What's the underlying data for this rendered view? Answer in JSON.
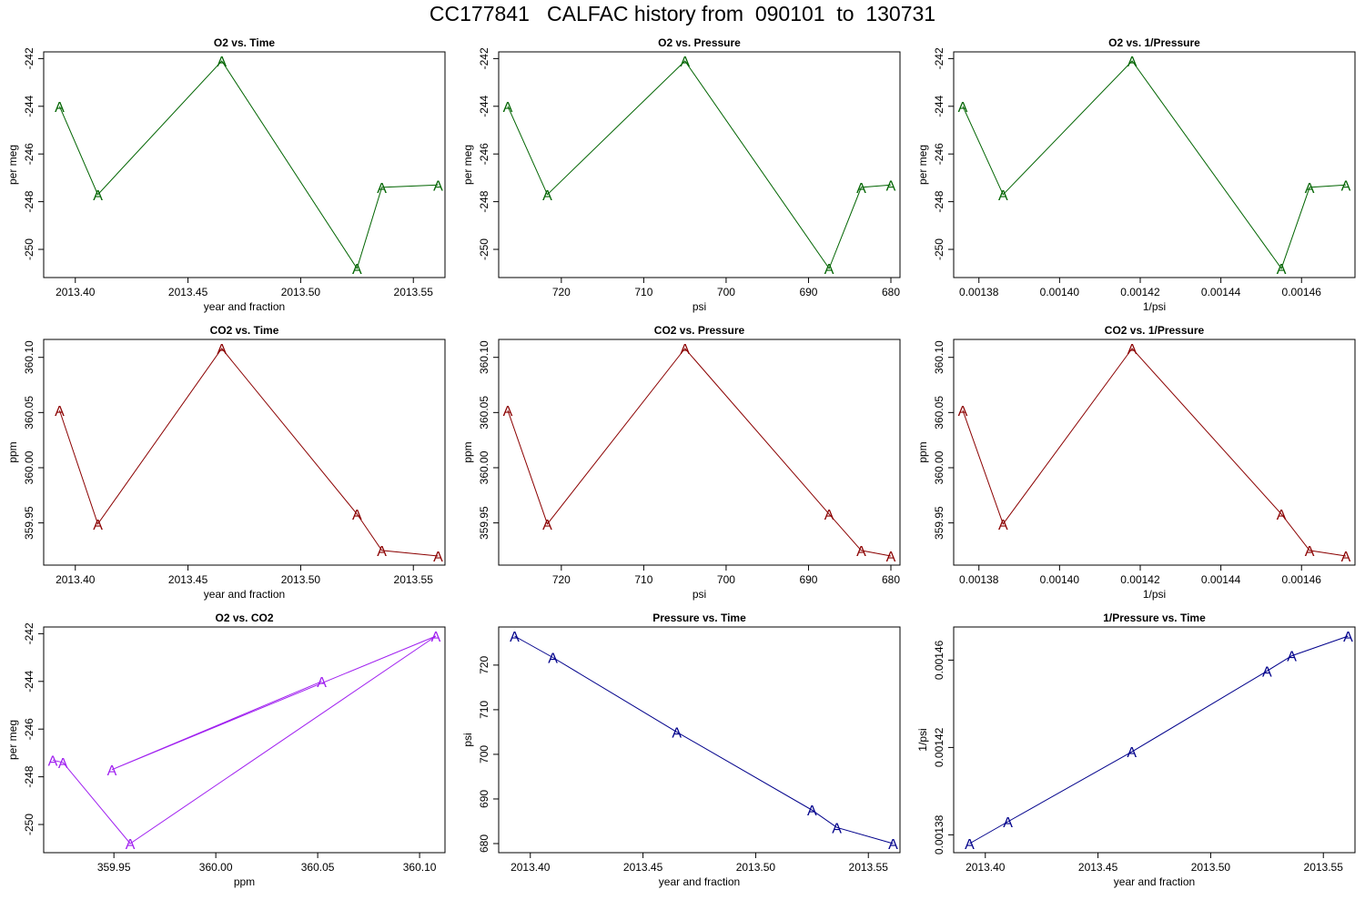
{
  "title": "CC177841   CALFAC history from  090101  to  130731",
  "chart_data": [
    {
      "type": "line",
      "title": "O2 vs. Time",
      "xlabel": "year and fraction",
      "ylabel": "per meg",
      "color": "#006400",
      "marker": "A",
      "x": [
        2013.393,
        2013.41,
        2013.465,
        2013.525,
        2013.536,
        2013.561
      ],
      "y": [
        -244.0,
        -247.7,
        -242.1,
        -250.8,
        -247.4,
        -247.3
      ],
      "xlim": [
        2013.39,
        2013.56
      ],
      "ylim": [
        -250.8,
        -242.1
      ],
      "xticks": [
        2013.4,
        2013.45,
        2013.5,
        2013.55
      ],
      "xtick_labels": [
        "2013.40",
        "2013.45",
        "2013.50",
        "2013.55"
      ],
      "yticks": [
        -250,
        -248,
        -246,
        -244,
        -242
      ],
      "ytick_labels": [
        "-250",
        "-248",
        "-246",
        "-244",
        "-242"
      ],
      "x_reversed": false
    },
    {
      "type": "line",
      "title": "O2 vs. Pressure",
      "xlabel": "psi",
      "ylabel": "per meg",
      "color": "#006400",
      "marker": "A",
      "x": [
        726.5,
        721.7,
        705.0,
        687.5,
        683.6,
        680.0
      ],
      "y": [
        -244.0,
        -247.7,
        -242.1,
        -250.8,
        -247.4,
        -247.3
      ],
      "xlim": [
        726.5,
        680.0
      ],
      "ylim": [
        -250.8,
        -242.1
      ],
      "xticks": [
        720,
        710,
        700,
        690,
        680
      ],
      "xtick_labels": [
        "720",
        "710",
        "700",
        "690",
        "680"
      ],
      "yticks": [
        -250,
        -248,
        -246,
        -244,
        -242
      ],
      "ytick_labels": [
        "-250",
        "-248",
        "-246",
        "-244",
        "-242"
      ],
      "x_reversed": true
    },
    {
      "type": "line",
      "title": "O2 vs. 1/Pressure",
      "xlabel": "1/psi",
      "ylabel": "per meg",
      "color": "#006400",
      "marker": "A",
      "x": [
        0.001376,
        0.001386,
        0.001418,
        0.001455,
        0.001462,
        0.001471
      ],
      "y": [
        -244.0,
        -247.7,
        -242.1,
        -250.8,
        -247.4,
        -247.3
      ],
      "xlim": [
        0.001376,
        0.001471
      ],
      "ylim": [
        -250.8,
        -242.1
      ],
      "xticks": [
        0.00138,
        0.0014,
        0.00142,
        0.00144,
        0.00146
      ],
      "xtick_labels": [
        "0.00138",
        "0.00140",
        "0.00142",
        "0.00144",
        "0.00146"
      ],
      "yticks": [
        -250,
        -248,
        -246,
        -244,
        -242
      ],
      "ytick_labels": [
        "-250",
        "-248",
        "-246",
        "-244",
        "-242"
      ],
      "x_reversed": false
    },
    {
      "type": "line",
      "title": "CO2 vs. Time",
      "xlabel": "year and fraction",
      "ylabel": "ppm",
      "color": "#8b0000",
      "marker": "A",
      "x": [
        2013.393,
        2013.41,
        2013.465,
        2013.525,
        2013.536,
        2013.561
      ],
      "y": [
        360.052,
        359.949,
        360.108,
        359.958,
        359.925,
        359.92
      ],
      "xlim": [
        2013.39,
        2013.56
      ],
      "ylim": [
        359.92,
        360.108
      ],
      "xticks": [
        2013.4,
        2013.45,
        2013.5,
        2013.55
      ],
      "xtick_labels": [
        "2013.40",
        "2013.45",
        "2013.50",
        "2013.55"
      ],
      "yticks": [
        359.95,
        360.0,
        360.05,
        360.1
      ],
      "ytick_labels": [
        "359.95",
        "360.00",
        "360.05",
        "360.10"
      ],
      "x_reversed": false
    },
    {
      "type": "line",
      "title": "CO2 vs. Pressure",
      "xlabel": "psi",
      "ylabel": "ppm",
      "color": "#8b0000",
      "marker": "A",
      "x": [
        726.5,
        721.7,
        705.0,
        687.5,
        683.6,
        680.0
      ],
      "y": [
        360.052,
        359.949,
        360.108,
        359.958,
        359.925,
        359.92
      ],
      "xlim": [
        726.5,
        680.0
      ],
      "ylim": [
        359.92,
        360.108
      ],
      "xticks": [
        720,
        710,
        700,
        690,
        680
      ],
      "xtick_labels": [
        "720",
        "710",
        "700",
        "690",
        "680"
      ],
      "yticks": [
        359.95,
        360.0,
        360.05,
        360.1
      ],
      "ytick_labels": [
        "359.95",
        "360.00",
        "360.05",
        "360.10"
      ],
      "x_reversed": true
    },
    {
      "type": "line",
      "title": "CO2 vs. 1/Pressure",
      "xlabel": "1/psi",
      "ylabel": "ppm",
      "color": "#8b0000",
      "marker": "A",
      "x": [
        0.001376,
        0.001386,
        0.001418,
        0.001455,
        0.001462,
        0.001471
      ],
      "y": [
        360.052,
        359.949,
        360.108,
        359.958,
        359.925,
        359.92
      ],
      "xlim": [
        0.001376,
        0.001471
      ],
      "ylim": [
        359.92,
        360.108
      ],
      "xticks": [
        0.00138,
        0.0014,
        0.00142,
        0.00144,
        0.00146
      ],
      "xtick_labels": [
        "0.00138",
        "0.00140",
        "0.00142",
        "0.00144",
        "0.00146"
      ],
      "yticks": [
        359.95,
        360.0,
        360.05,
        360.1
      ],
      "ytick_labels": [
        "359.95",
        "360.00",
        "360.05",
        "360.10"
      ],
      "x_reversed": false
    },
    {
      "type": "line",
      "title": "O2 vs. CO2",
      "xlabel": "ppm",
      "ylabel": "per meg",
      "color": "#a020f0",
      "marker": "A",
      "x": [
        360.052,
        359.949,
        360.108,
        359.958,
        359.925,
        359.92
      ],
      "y": [
        -244.0,
        -247.7,
        -242.1,
        -250.8,
        -247.4,
        -247.3
      ],
      "xlim": [
        359.92,
        360.108
      ],
      "ylim": [
        -250.8,
        -242.1
      ],
      "xticks": [
        359.95,
        360.0,
        360.05,
        360.1
      ],
      "xtick_labels": [
        "359.95",
        "360.00",
        "360.05",
        "360.10"
      ],
      "yticks": [
        -250,
        -248,
        -246,
        -244,
        -242
      ],
      "ytick_labels": [
        "-250",
        "-248",
        "-246",
        "-244",
        "-242"
      ],
      "x_reversed": false
    },
    {
      "type": "line",
      "title": "Pressure vs. Time",
      "xlabel": "year and fraction",
      "ylabel": "psi",
      "color": "#00008b",
      "marker": "A",
      "x": [
        2013.393,
        2013.41,
        2013.465,
        2013.525,
        2013.536,
        2013.561
      ],
      "y": [
        726.5,
        721.7,
        705.0,
        687.5,
        683.6,
        680.0
      ],
      "xlim": [
        2013.39,
        2013.56
      ],
      "ylim": [
        680.0,
        726.5
      ],
      "xticks": [
        2013.4,
        2013.45,
        2013.5,
        2013.55
      ],
      "xtick_labels": [
        "2013.40",
        "2013.45",
        "2013.50",
        "2013.55"
      ],
      "yticks": [
        680,
        690,
        700,
        710,
        720
      ],
      "ytick_labels": [
        "680",
        "690",
        "700",
        "710",
        "720"
      ],
      "x_reversed": false
    },
    {
      "type": "line",
      "title": "1/Pressure vs. Time",
      "xlabel": "year and fraction",
      "ylabel": "1/psi",
      "color": "#00008b",
      "marker": "A",
      "x": [
        2013.393,
        2013.41,
        2013.465,
        2013.525,
        2013.536,
        2013.561
      ],
      "y": [
        0.001376,
        0.001386,
        0.001418,
        0.001455,
        0.001462,
        0.001471
      ],
      "xlim": [
        2013.39,
        2013.56
      ],
      "ylim": [
        0.001376,
        0.001471
      ],
      "xticks": [
        2013.4,
        2013.45,
        2013.5,
        2013.55
      ],
      "xtick_labels": [
        "2013.40",
        "2013.45",
        "2013.50",
        "2013.55"
      ],
      "yticks": [
        0.00138,
        0.00142,
        0.00146
      ],
      "ytick_labels": [
        "0.00138",
        "0.00142",
        "0.00146"
      ],
      "x_reversed": false
    }
  ]
}
